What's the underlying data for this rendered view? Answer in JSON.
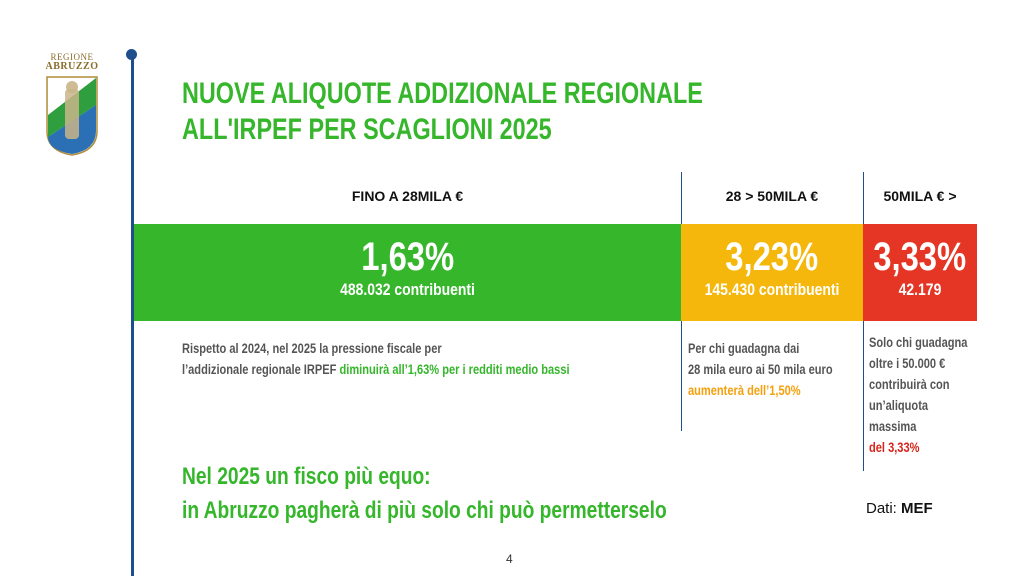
{
  "logo": {
    "line1": "REGIONE",
    "line2": "ABRUZZO",
    "alt": "regione-abruzzo-logo"
  },
  "title": {
    "line1": "NUOVE ALIQUOTE ADDIZIONALE REGIONALE",
    "line2": "ALL'IRPEF PER SCAGLIONI 2025"
  },
  "brackets": [
    {
      "header": "FINO A 28MILA €",
      "rate": "1,63%",
      "taxpayers": "488.032 contribuenti",
      "color": "#35b62b"
    },
    {
      "header": "28 > 50MILA €",
      "rate": "3,23%",
      "taxpayers": "145.430 contribuenti",
      "color": "#f5b70b"
    },
    {
      "header": "50MILA € >",
      "rate": "3,33%",
      "taxpayers": "42.179",
      "color": "#e53524"
    }
  ],
  "desc_green": {
    "l1": "Rispetto al 2024, nel 2025 la pressione fiscale per",
    "l2a": "l’addizionale regionale IRPEF ",
    "l2b": "diminuirà all’1,63% per i redditi medio bassi"
  },
  "desc_yellow": {
    "l1": "Per chi guadagna dai",
    "l2": "28 mila euro ai 50 mila euro",
    "l3": "aumenterà dell’1,50%"
  },
  "desc_red": {
    "l1": "Solo chi guadagna",
    "l2": "oltre i 50.000 €",
    "l3": "contribuirà con",
    "l4": "un’aliquota",
    "l5": "massima",
    "l6": "del 3,33%"
  },
  "bottom": {
    "l1": "Nel 2025 un fisco più equo:",
    "l2": "in Abruzzo pagherà di più solo chi può permetterselo"
  },
  "source": {
    "label": "Dati: ",
    "value": "MEF"
  },
  "page_number": "4"
}
